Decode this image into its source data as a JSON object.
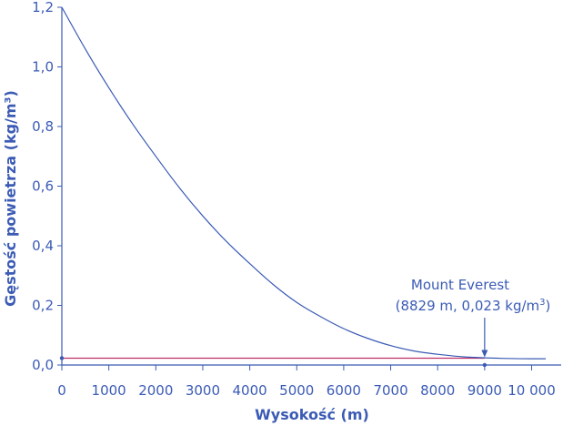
{
  "chart_data": {
    "type": "line",
    "xlabel": "Wysokość (m)",
    "ylabel": "Gęstość powietrza (kg/m³)",
    "xlim": [
      0,
      10300
    ],
    "ylim": [
      0,
      1.2
    ],
    "x_ticks": [
      0,
      1000,
      2000,
      3000,
      4000,
      5000,
      6000,
      7000,
      8000,
      9000,
      10000
    ],
    "x_tick_labels": [
      "0",
      "1000",
      "2000",
      "3000",
      "4000",
      "5000",
      "6000",
      "7000",
      "8000",
      "9000",
      "10 000"
    ],
    "y_ticks": [
      0,
      0.2,
      0.4,
      0.6,
      0.8,
      1.0,
      1.2
    ],
    "y_tick_labels": [
      "0,0",
      "0,2",
      "0,4",
      "0,6",
      "0,8",
      "1,0",
      "1,2"
    ],
    "grid": false,
    "series": [
      {
        "x": [
          0,
          500,
          1000,
          1500,
          2000,
          2500,
          3000,
          3500,
          4000,
          4500,
          5000,
          5500,
          6000,
          6500,
          7000,
          7500,
          8000,
          8500,
          9000,
          9500,
          10000,
          10300
        ],
        "y": [
          1.2,
          1.06,
          0.93,
          0.81,
          0.7,
          0.595,
          0.5,
          0.415,
          0.34,
          0.27,
          0.21,
          0.163,
          0.122,
          0.09,
          0.065,
          0.047,
          0.036,
          0.028,
          0.024,
          0.022,
          0.021,
          0.021
        ],
        "color": "#3b5bb5"
      }
    ],
    "reference_line": {
      "y": 0.023,
      "x_from": 0,
      "x_to": 9000,
      "color": "#c0306a"
    },
    "annotation": {
      "line1": "Mount Everest",
      "line2_prefix": "(8829 m, 0,023 kg/m",
      "line2_sup": "3",
      "line2_suffix": ")",
      "x": 9000,
      "y": 0.023
    }
  },
  "colors": {
    "axis": "#3b5bb5",
    "curve": "#3b5bb5",
    "reference": "#c0306a"
  }
}
